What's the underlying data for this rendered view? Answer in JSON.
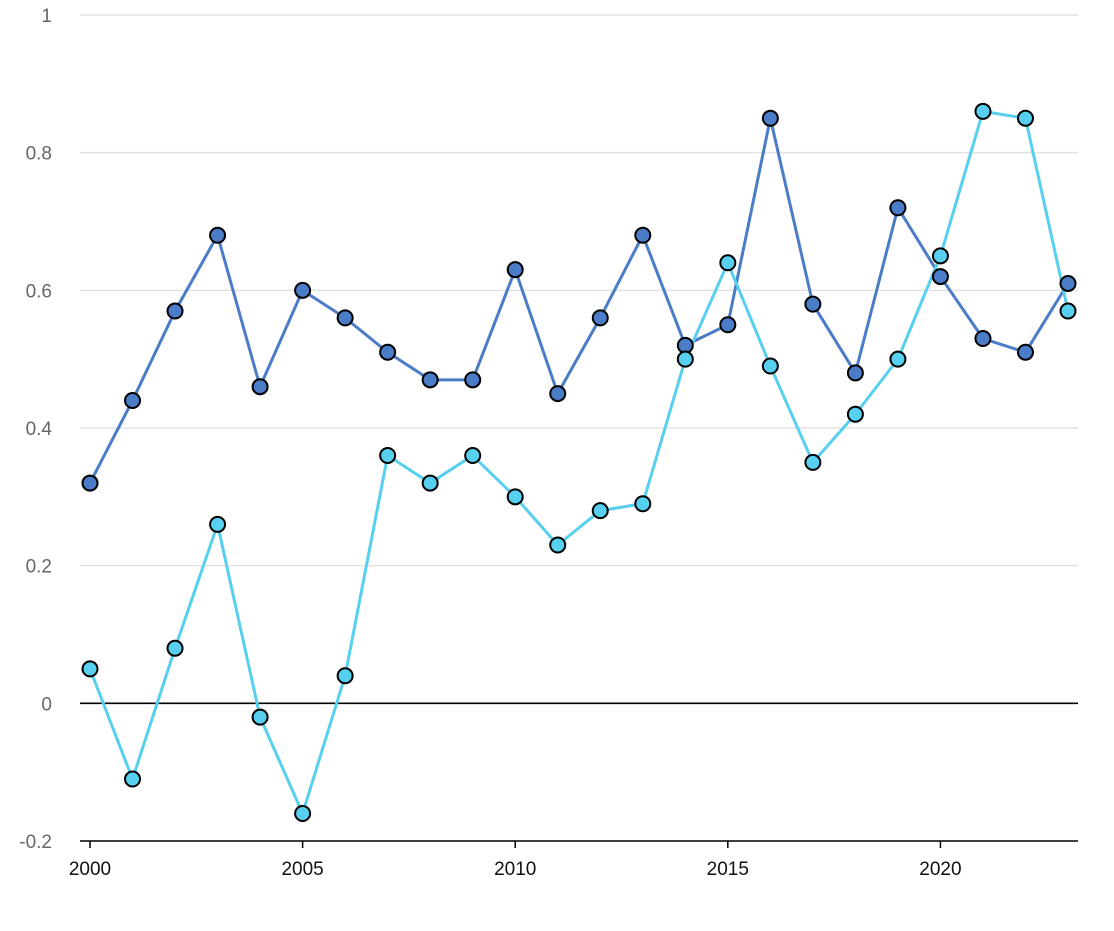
{
  "chart_data": {
    "type": "line",
    "title": "",
    "xlabel": "",
    "ylabel": "",
    "x": [
      2000,
      2001,
      2002,
      2003,
      2004,
      2005,
      2006,
      2007,
      2008,
      2009,
      2010,
      2011,
      2012,
      2013,
      2014,
      2015,
      2016,
      2017,
      2018,
      2019,
      2020,
      2021,
      2022,
      2023
    ],
    "xlim": [
      2000,
      2023
    ],
    "ylim": [
      -0.2,
      1
    ],
    "yticks": [
      -0.2,
      0,
      0.2,
      0.4,
      0.6,
      0.8,
      1
    ],
    "ytick_labels": [
      "-0.2",
      "0",
      "0.2",
      "0.4",
      "0.6",
      "0.8",
      "1"
    ],
    "xticks": [
      2000,
      2005,
      2010,
      2015,
      2020
    ],
    "xtick_labels": [
      "2000",
      "2005",
      "2010",
      "2015",
      "2020"
    ],
    "grid": true,
    "legend": "none",
    "series": [
      {
        "color": "#4a7cc7",
        "values": [
          0.32,
          0.44,
          0.57,
          0.68,
          0.46,
          0.6,
          0.56,
          0.51,
          0.47,
          0.47,
          0.63,
          0.45,
          0.56,
          0.68,
          0.52,
          0.55,
          0.85,
          0.58,
          0.48,
          0.72,
          0.62,
          0.53,
          0.51,
          0.61
        ]
      },
      {
        "color": "#56d0ee",
        "values": [
          0.05,
          -0.11,
          0.08,
          0.26,
          -0.02,
          -0.16,
          0.04,
          0.36,
          0.32,
          0.36,
          0.3,
          0.23,
          0.28,
          0.29,
          0.5,
          0.64,
          0.49,
          0.35,
          0.42,
          0.5,
          0.65,
          0.86,
          0.85,
          0.57
        ]
      }
    ]
  }
}
